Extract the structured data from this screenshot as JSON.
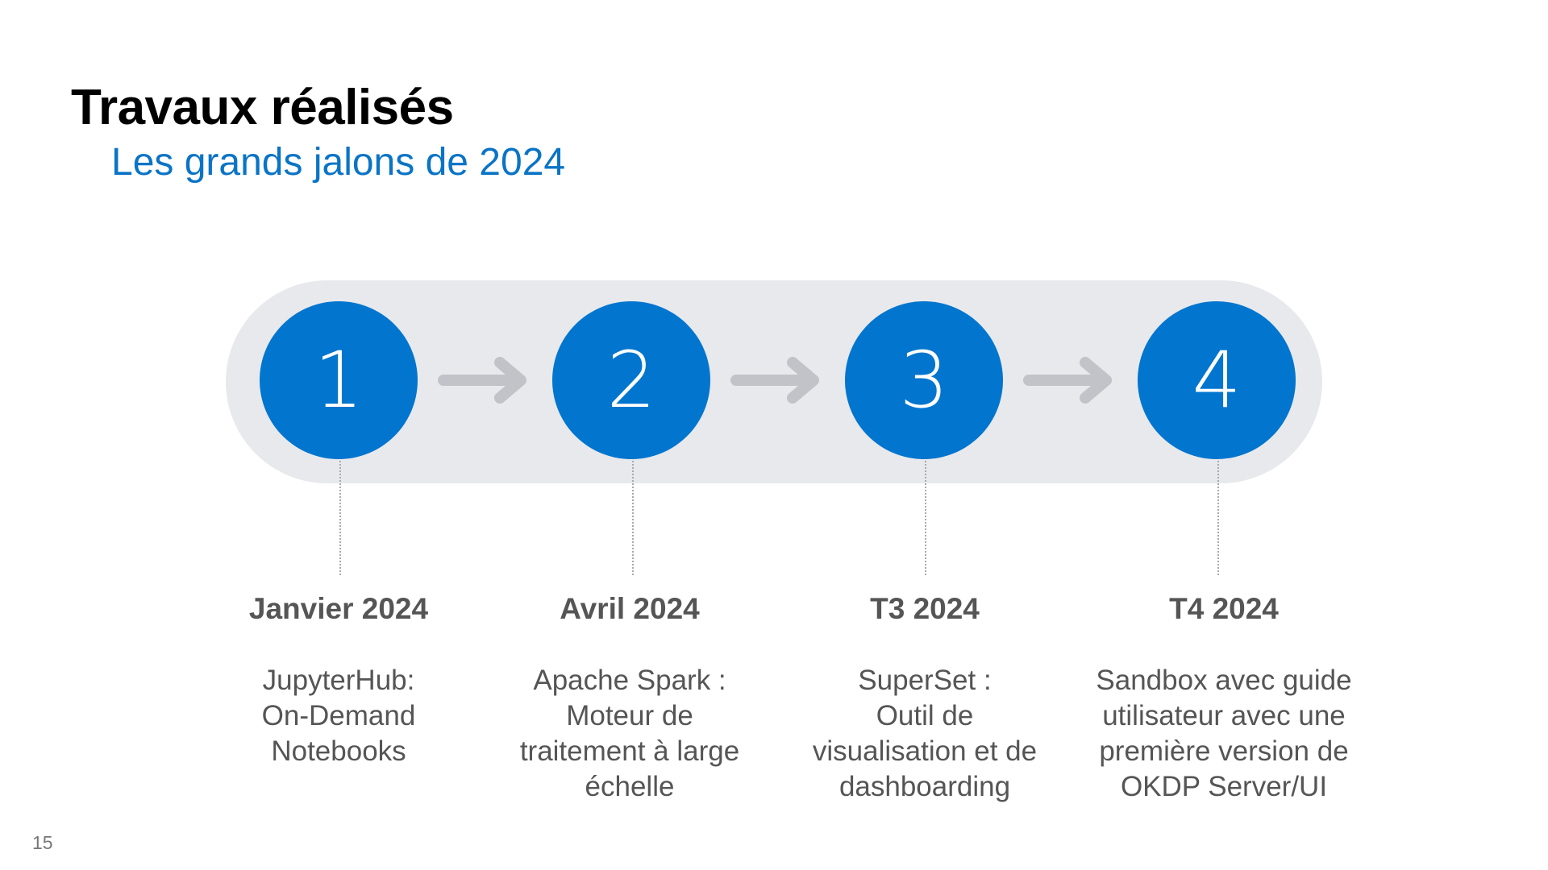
{
  "header": {
    "title": "Travaux réalisés",
    "subtitle": "Les grands jalons de 2024"
  },
  "colors": {
    "accent": "#0275cf",
    "track": "#e8e9ec",
    "arrow": "#c1c3c9",
    "text": "#555555"
  },
  "milestones": [
    {
      "number": "1",
      "date": "Janvier 2024",
      "lines": [
        "JupyterHub:",
        "On-Demand",
        "Notebooks"
      ]
    },
    {
      "number": "2",
      "date": "Avril 2024",
      "lines": [
        "Apache Spark :",
        "Moteur de",
        "traitement à large",
        "échelle"
      ]
    },
    {
      "number": "3",
      "date": "T3 2024",
      "lines": [
        "SuperSet :",
        "Outil de",
        "visualisation et de",
        "dashboarding"
      ]
    },
    {
      "number": "4",
      "date": "T4 2024",
      "lines": [
        "Sandbox avec guide",
        "utilisateur avec une",
        "première version de",
        "OKDP Server/UI"
      ]
    }
  ],
  "arrow_icon": "arrow-right-icon",
  "footer": {
    "page_number": "15"
  }
}
